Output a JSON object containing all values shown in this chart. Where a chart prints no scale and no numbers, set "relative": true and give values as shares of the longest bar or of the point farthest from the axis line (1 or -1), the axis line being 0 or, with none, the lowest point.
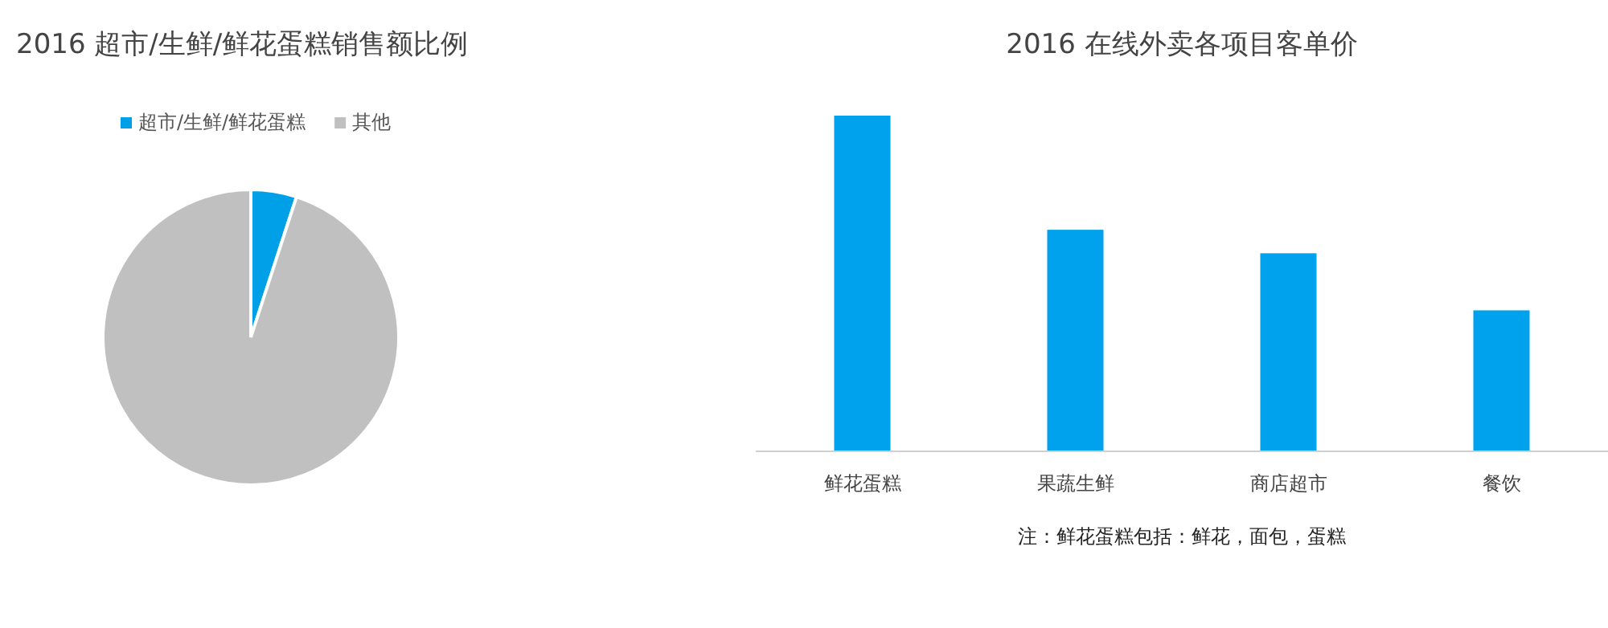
{
  "chart_data": [
    {
      "type": "pie",
      "title": "2016 超市/生鲜/鲜花蛋糕销售额比例",
      "categories": [
        "超市/生鲜/鲜花蛋糕",
        "其他"
      ],
      "values": [
        5,
        95
      ],
      "colors": [
        "#00a0e9",
        "#c0c0c0"
      ],
      "legend": "top"
    },
    {
      "type": "bar",
      "title": "2016 在线外卖各项目客单价",
      "categories": [
        "鲜花蛋糕",
        "果蔬生鲜",
        "商店超市",
        "餐饮"
      ],
      "values": [
        1,
        0.66,
        0.59,
        0.42
      ],
      "relative": true,
      "color": "#00a2ed",
      "annotations": [
        "注：鲜花蛋糕包括：鲜花，面包，蛋糕"
      ]
    }
  ]
}
